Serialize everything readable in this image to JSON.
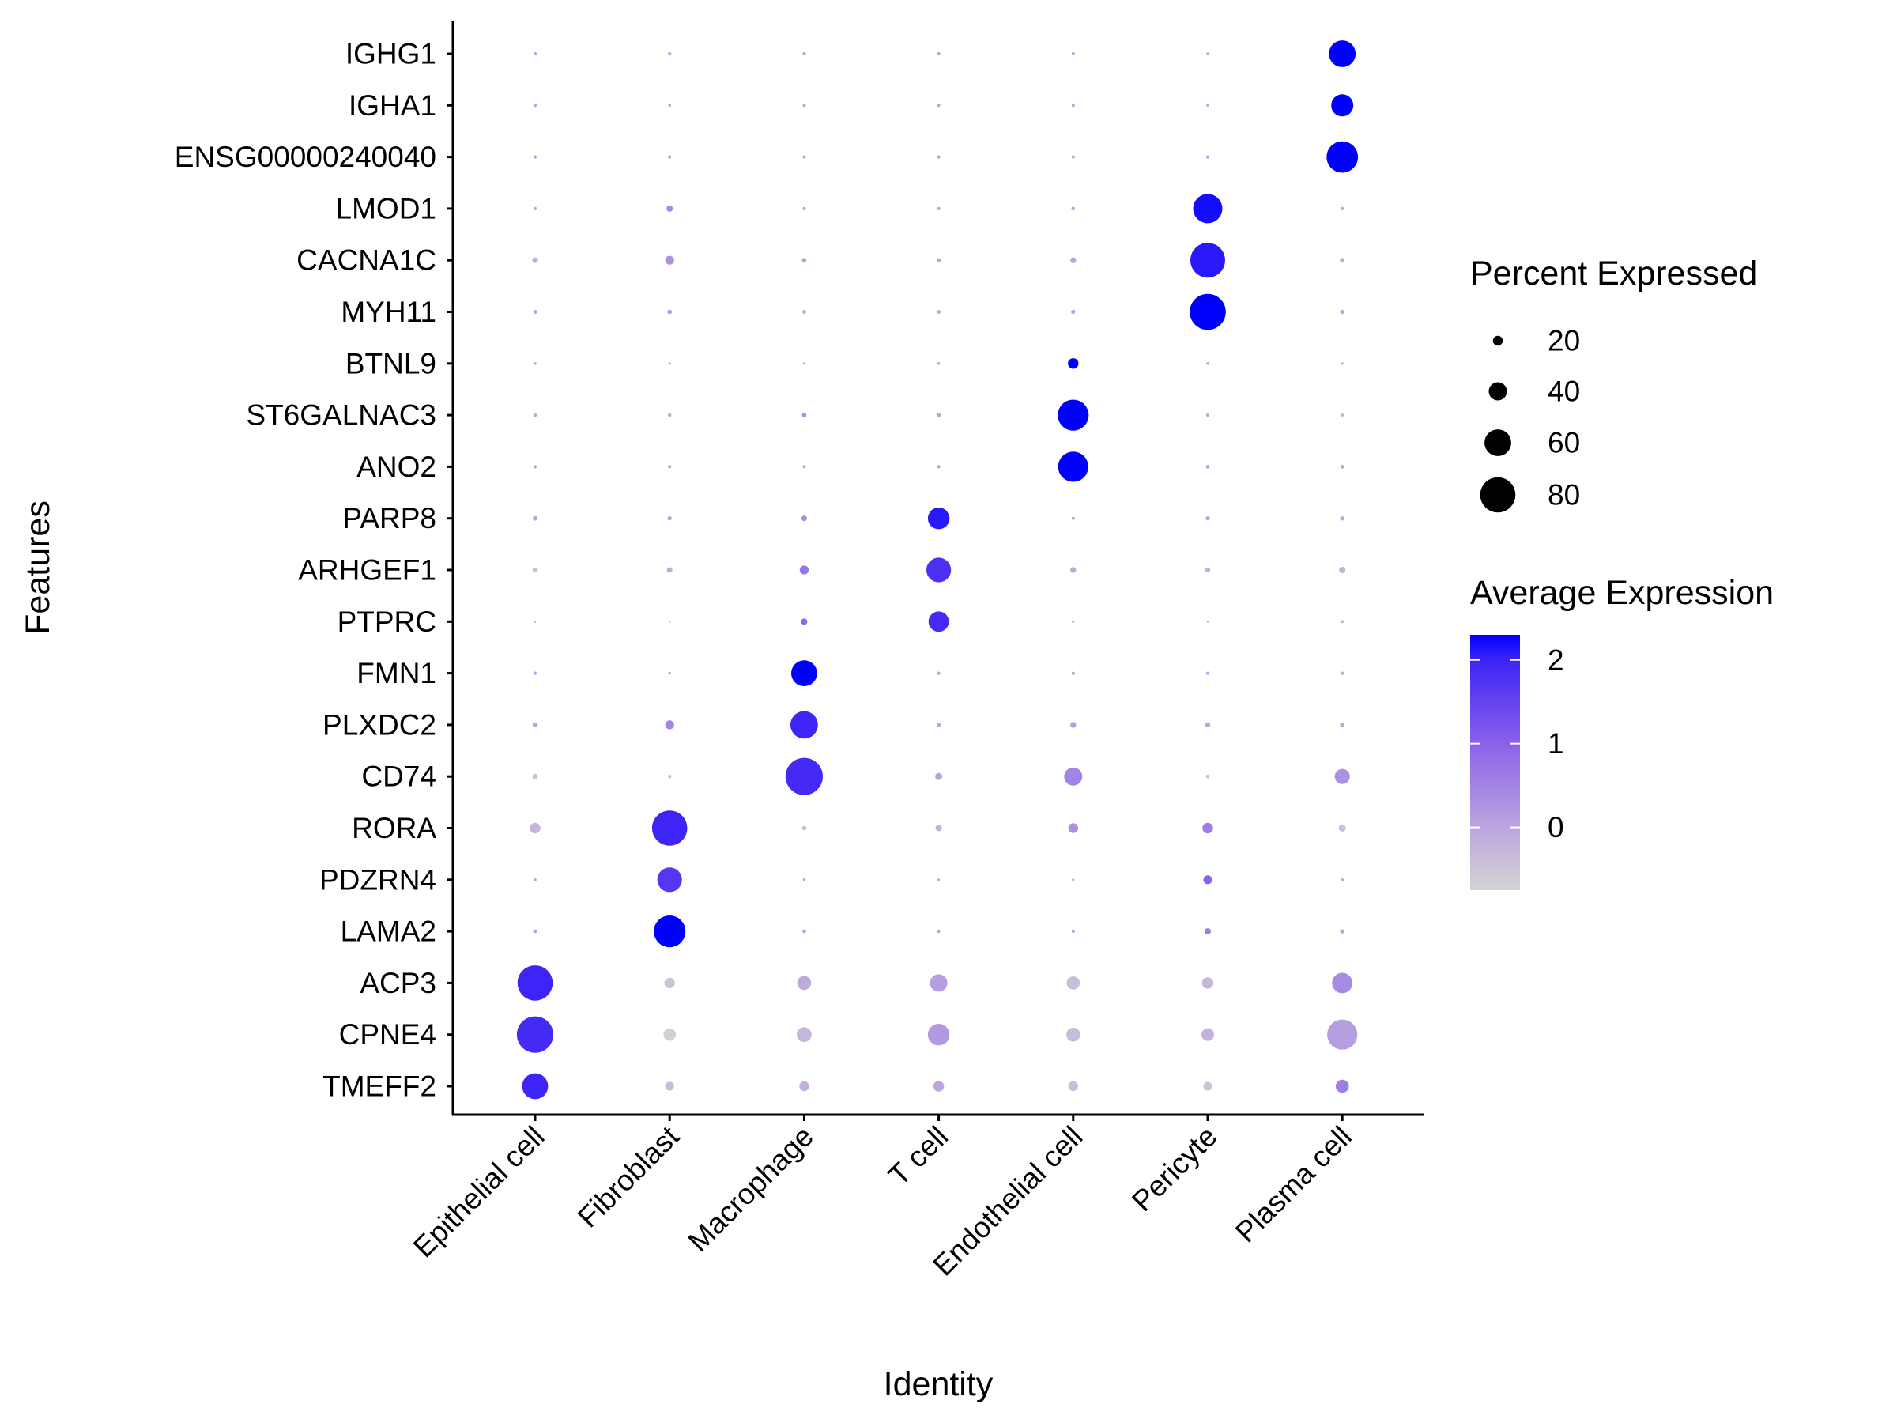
{
  "chart_data": {
    "type": "dotplot",
    "xlabel": "Identity",
    "ylabel": "Features",
    "categories": [
      "Epithelial cell",
      "Fibroblast",
      "Macrophage",
      "T cell",
      "Endothelial cell",
      "Pericyte",
      "Plasma cell"
    ],
    "features": [
      "IGHG1",
      "IGHA1",
      "ENSG00000240040",
      "LMOD1",
      "CACNA1C",
      "MYH11",
      "BTNL9",
      "ST6GALNAC3",
      "ANO2",
      "PARP8",
      "ARHGEF1",
      "PTPRC",
      "FMN1",
      "PLXDC2",
      "CD74",
      "RORA",
      "PDZRN4",
      "LAMA2",
      "ACP3",
      "CPNE4",
      "TMEFF2"
    ],
    "percent_expressed": [
      [
        5,
        5,
        5,
        5,
        5,
        4,
        60
      ],
      [
        5,
        4,
        5,
        5,
        5,
        4,
        49
      ],
      [
        5,
        5,
        5,
        5,
        5,
        5,
        71
      ],
      [
        5,
        12,
        5,
        5,
        6,
        66,
        5
      ],
      [
        10,
        18,
        8,
        7,
        11,
        79,
        8
      ],
      [
        6,
        8,
        6,
        6,
        7,
        82,
        7
      ],
      [
        4,
        3,
        3,
        4,
        22,
        4,
        3
      ],
      [
        5,
        5,
        8,
        6,
        70,
        5,
        4
      ],
      [
        5,
        5,
        5,
        5,
        68,
        6,
        6
      ],
      [
        8,
        7,
        10,
        48,
        5,
        7,
        7
      ],
      [
        9,
        10,
        18,
        55,
        11,
        9,
        12
      ],
      [
        2,
        2,
        12,
        45,
        3,
        2,
        4
      ],
      [
        5,
        4,
        58,
        5,
        5,
        5,
        5
      ],
      [
        9,
        18,
        62,
        7,
        11,
        9,
        7
      ],
      [
        10,
        6,
        85,
        14,
        40,
        6,
        33
      ],
      [
        22,
        80,
        8,
        12,
        20,
        22,
        14
      ],
      [
        4,
        55,
        4,
        3,
        3,
        18,
        4
      ],
      [
        6,
        72,
        6,
        5,
        5,
        12,
        7
      ],
      [
        80,
        22,
        30,
        38,
        28,
        24,
        45
      ],
      [
        83,
        26,
        32,
        48,
        30,
        27,
        68
      ],
      [
        58,
        18,
        20,
        22,
        20,
        18,
        28
      ]
    ],
    "average_expression": [
      [
        0,
        0,
        0,
        0,
        0,
        0,
        2.3
      ],
      [
        0,
        0,
        0,
        0,
        0,
        0,
        2.3
      ],
      [
        0,
        0,
        0,
        0,
        0,
        0,
        2.3
      ],
      [
        0,
        0.4,
        0,
        0,
        0,
        2.2,
        0
      ],
      [
        -0.1,
        0.3,
        0,
        0,
        0,
        2.1,
        -0.1
      ],
      [
        0,
        0.1,
        0,
        0,
        0,
        2.3,
        0
      ],
      [
        0,
        0,
        0,
        0,
        2.3,
        0,
        0
      ],
      [
        0,
        0,
        0.3,
        0.1,
        2.3,
        0,
        0
      ],
      [
        0,
        0,
        0,
        0,
        2.3,
        0,
        0
      ],
      [
        0.1,
        0,
        0.4,
        2.1,
        0,
        0,
        0
      ],
      [
        -0.4,
        -0.1,
        0.7,
        1.8,
        -0.1,
        -0.2,
        -0.2
      ],
      [
        0,
        0,
        0.9,
        1.9,
        0,
        0,
        0
      ],
      [
        0,
        0,
        2.3,
        0,
        0,
        0,
        0
      ],
      [
        0,
        0.5,
        2.0,
        -0.1,
        0.1,
        0,
        0
      ],
      [
        -0.5,
        -0.6,
        1.9,
        0,
        0.5,
        -0.5,
        0.3
      ],
      [
        -0.3,
        2.0,
        -0.5,
        -0.2,
        0.3,
        0.6,
        -0.4
      ],
      [
        0,
        1.7,
        0,
        0,
        0,
        1.0,
        0
      ],
      [
        0,
        2.3,
        0,
        0,
        0,
        0.6,
        0
      ],
      [
        2.0,
        -0.5,
        -0.1,
        0.1,
        -0.4,
        -0.3,
        0.4
      ],
      [
        1.9,
        -0.7,
        -0.3,
        0.2,
        -0.4,
        -0.2,
        0.1
      ],
      [
        2.0,
        -0.4,
        -0.2,
        0,
        -0.4,
        -0.5,
        0.6
      ]
    ],
    "size_legend": {
      "title": "Percent Expressed",
      "breaks": [
        20,
        40,
        60,
        80
      ]
    },
    "color_legend": {
      "title": "Average Expression",
      "breaks": [
        0,
        1,
        2
      ],
      "range": [
        -0.75,
        2.3
      ],
      "low_color": "#D3D3D3",
      "high_color": "#0000FF"
    },
    "legend_position": "right",
    "grid": false
  }
}
